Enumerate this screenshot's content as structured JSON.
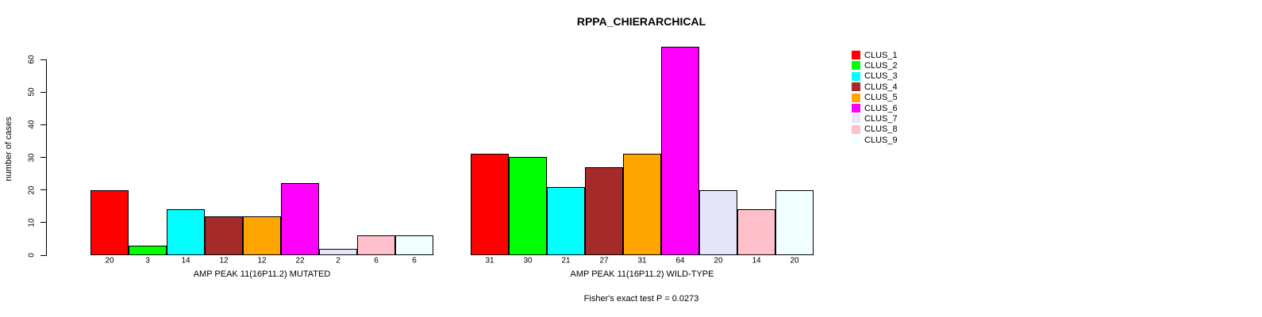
{
  "chart_data": {
    "type": "bar",
    "title": "RPPA_CHIERARCHICAL",
    "ylabel": "number of cases",
    "xlabel": "",
    "ylim": [
      0,
      60
    ],
    "yticks": [
      0,
      10,
      20,
      30,
      40,
      50,
      60
    ],
    "grid": false,
    "annotation": "Fisher's exact test P = 0.0273",
    "groups": [
      {
        "label": "AMP PEAK 11(16P11.2) MUTATED",
        "values": [
          20,
          3,
          14,
          12,
          12,
          22,
          2,
          6,
          6
        ]
      },
      {
        "label": "AMP PEAK 11(16P11.2) WILD-TYPE",
        "values": [
          31,
          30,
          21,
          27,
          31,
          64,
          20,
          14,
          20
        ]
      }
    ],
    "series_colors": [
      "#FF0000",
      "#00FF00",
      "#00FFFF",
      "#A52A2A",
      "#FFA500",
      "#FF00FF",
      "#E6E6FA",
      "#FFC0CB",
      "#F0FFFF"
    ],
    "legend": {
      "position": "right",
      "entries": [
        {
          "label": "CLUS_1",
          "color": "#FF0000"
        },
        {
          "label": "CLUS_2",
          "color": "#00FF00"
        },
        {
          "label": "CLUS_3",
          "color": "#00FFFF"
        },
        {
          "label": "CLUS_4",
          "color": "#A52A2A"
        },
        {
          "label": "CLUS_5",
          "color": "#FFA500"
        },
        {
          "label": "CLUS_6",
          "color": "#FF00FF"
        },
        {
          "label": "CLUS_7",
          "color": "#E6E6FA"
        },
        {
          "label": "CLUS_8",
          "color": "#FFC0CB"
        },
        {
          "label": "CLUS_9",
          "color": "#F0FFFF"
        }
      ]
    },
    "style": {
      "background": "#FFFFFF",
      "axis_color": "#000000",
      "text_color": "#000000"
    }
  }
}
